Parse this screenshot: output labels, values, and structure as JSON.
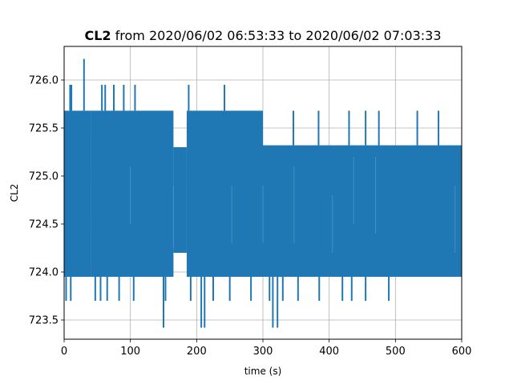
{
  "chart_data": {
    "type": "line",
    "title_bold": "CL2",
    "title_rest": " from 2020/06/02 06:53:33 to 2020/06/02 07:03:33",
    "xlabel": "time (s)",
    "ylabel": "CL2",
    "xlim": [
      0,
      600
    ],
    "ylim": [
      723.3,
      726.35
    ],
    "xticks": [
      0,
      100,
      200,
      300,
      400,
      500,
      600
    ],
    "xtick_labels": [
      "0",
      "100",
      "200",
      "300",
      "400",
      "500",
      "600"
    ],
    "yticks": [
      723.5,
      724.0,
      724.5,
      725.0,
      725.5,
      726.0
    ],
    "ytick_labels": [
      "723.5",
      "724.0",
      "724.5",
      "725.0",
      "725.5",
      "726.0"
    ],
    "grid": true,
    "series": [
      {
        "color": "#1f77b4",
        "band_segments": [
          {
            "x": [
              0,
              40
            ],
            "low": 723.95,
            "high": 725.68
          },
          {
            "x": [
              40,
              165
            ],
            "low": 723.95,
            "high": 725.68
          },
          {
            "x": [
              165,
              185
            ],
            "low": 724.2,
            "high": 725.3
          },
          {
            "x": [
              185,
              300
            ],
            "low": 723.95,
            "high": 725.68
          },
          {
            "x": [
              300,
              600
            ],
            "low": 723.95,
            "high": 725.32
          }
        ],
        "spikes_high": [
          {
            "x": 9,
            "y": 725.95
          },
          {
            "x": 11,
            "y": 725.95
          },
          {
            "x": 30,
            "y": 726.22
          },
          {
            "x": 57,
            "y": 725.95
          },
          {
            "x": 62,
            "y": 725.95
          },
          {
            "x": 75,
            "y": 725.95
          },
          {
            "x": 90,
            "y": 725.95
          },
          {
            "x": 107,
            "y": 725.95
          },
          {
            "x": 188,
            "y": 725.95
          },
          {
            "x": 242,
            "y": 725.95
          },
          {
            "x": 346,
            "y": 725.68
          },
          {
            "x": 384,
            "y": 725.68
          },
          {
            "x": 430,
            "y": 725.68
          },
          {
            "x": 455,
            "y": 725.68
          },
          {
            "x": 475,
            "y": 725.68
          },
          {
            "x": 533,
            "y": 725.68
          },
          {
            "x": 565,
            "y": 725.68
          }
        ],
        "spikes_low": [
          {
            "x": 3,
            "y": 723.7
          },
          {
            "x": 10,
            "y": 723.7
          },
          {
            "x": 47,
            "y": 723.7
          },
          {
            "x": 55,
            "y": 723.7
          },
          {
            "x": 65,
            "y": 723.7
          },
          {
            "x": 83,
            "y": 723.7
          },
          {
            "x": 105,
            "y": 723.7
          },
          {
            "x": 150,
            "y": 723.42
          },
          {
            "x": 153,
            "y": 723.7
          },
          {
            "x": 191,
            "y": 723.7
          },
          {
            "x": 207,
            "y": 723.42
          },
          {
            "x": 212,
            "y": 723.42
          },
          {
            "x": 225,
            "y": 723.7
          },
          {
            "x": 250,
            "y": 723.7
          },
          {
            "x": 282,
            "y": 723.7
          },
          {
            "x": 310,
            "y": 723.7
          },
          {
            "x": 315,
            "y": 723.42
          },
          {
            "x": 322,
            "y": 723.42
          },
          {
            "x": 330,
            "y": 723.7
          },
          {
            "x": 353,
            "y": 723.7
          },
          {
            "x": 385,
            "y": 723.7
          },
          {
            "x": 420,
            "y": 723.7
          },
          {
            "x": 434,
            "y": 723.7
          },
          {
            "x": 455,
            "y": 723.7
          },
          {
            "x": 490,
            "y": 723.7
          }
        ]
      }
    ]
  }
}
